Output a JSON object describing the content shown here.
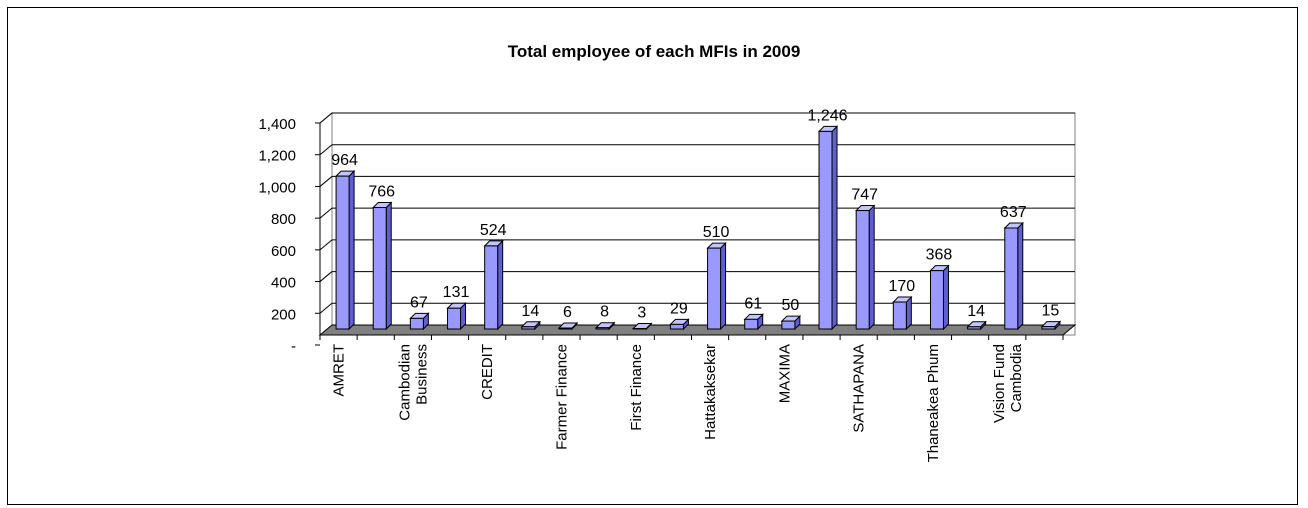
{
  "chart_data": {
    "type": "bar",
    "title": "Total employee of each MFIs in 2009",
    "categories": [
      "AMRET",
      "",
      "Cambodian Business",
      "",
      "CREDIT",
      "",
      "Farmer Finance",
      "",
      "First Finance",
      "",
      "Hattakaksekar",
      "",
      "MAXIMA",
      "",
      "SATHAPANA",
      "",
      "Thaneakea Phum",
      "",
      "Vision Fund Cambodia",
      ""
    ],
    "values": [
      964,
      766,
      67,
      131,
      524,
      14,
      6,
      8,
      3,
      29,
      510,
      61,
      50,
      1246,
      747,
      170,
      368,
      14,
      637,
      15
    ],
    "data_labels": [
      "964",
      "766",
      "67",
      "131",
      "524",
      "14",
      "6",
      "8",
      "3",
      "29",
      "510",
      "61",
      "50",
      "1,246",
      "747",
      "170",
      "368",
      "14",
      "637",
      "15"
    ],
    "y_ticks": [
      {
        "value": 0,
        "label": "-"
      },
      {
        "value": 200,
        "label": "200"
      },
      {
        "value": 400,
        "label": "400"
      },
      {
        "value": 600,
        "label": "600"
      },
      {
        "value": 800,
        "label": "800"
      },
      {
        "value": 1000,
        "label": "1,000"
      },
      {
        "value": 1200,
        "label": "1,200"
      },
      {
        "value": 1400,
        "label": "1,400"
      }
    ],
    "ylim": [
      0,
      1400
    ],
    "grid": true,
    "legend": "none",
    "colors": {
      "bar_front": "#9999ff",
      "bar_side": "#5f5fcf",
      "bar_top": "#c4c4ff",
      "bar_edge": "#000000",
      "floor": "#808080",
      "gridline": "#000000"
    }
  }
}
